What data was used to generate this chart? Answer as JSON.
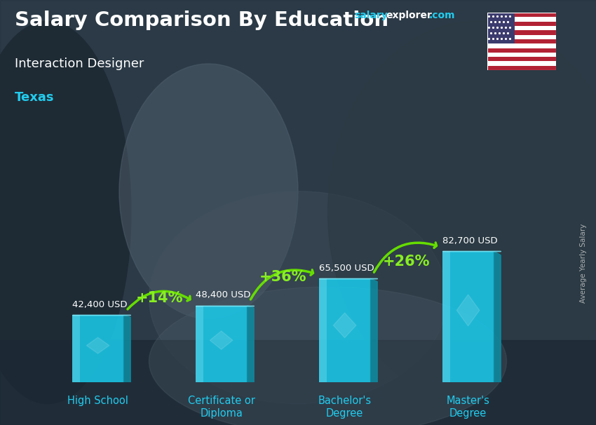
{
  "title": "Salary Comparison By Education",
  "subtitle": "Interaction Designer",
  "location": "Texas",
  "ylabel": "Average Yearly Salary",
  "categories": [
    "High School",
    "Certificate or\nDiploma",
    "Bachelor's\nDegree",
    "Master's\nDegree"
  ],
  "values": [
    42400,
    48400,
    65500,
    82700
  ],
  "labels": [
    "42,400 USD",
    "48,400 USD",
    "65,500 USD",
    "82,700 USD"
  ],
  "pct_labels": [
    "+14%",
    "+36%",
    "+26%"
  ],
  "bar_face_color": "#1ac8e8",
  "bar_side_color": "#0e8aa0",
  "bar_top_color": "#7ae8f8",
  "bar_shine_color": "#aaf4ff",
  "pct_color": "#88ee22",
  "arrow_color": "#66dd00",
  "label_color": "#ffffff",
  "xtick_color": "#22ccee",
  "ylabel_color": "#cccccc",
  "bg_color": "#2a3a48",
  "overlay_alpha": 0.75,
  "title_color": "#ffffff",
  "subtitle_color": "#ffffff",
  "location_color": "#22ccee",
  "site_salary_color": "#22ccee",
  "site_explorer_color": "#ffffff",
  "site_com_color": "#22ccee",
  "max_val": 95000,
  "bar_width": 0.42
}
